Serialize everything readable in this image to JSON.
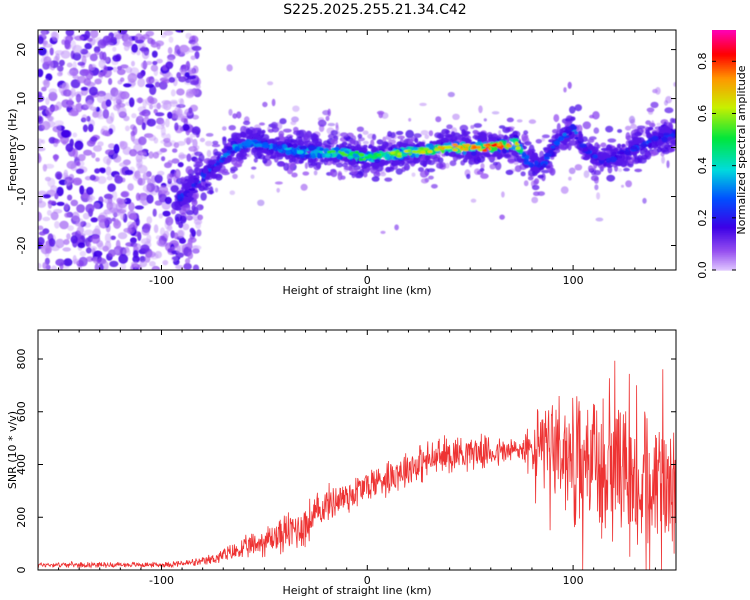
{
  "title": "S225.2025.255.21.34.C42",
  "chart_data": [
    {
      "type": "heatmap",
      "xlabel": "Height of straight line (km)",
      "ylabel": "Frequency (Hz)",
      "xlim": [
        -160,
        150
      ],
      "ylim": [
        -25,
        24
      ],
      "xticks": [
        -100,
        0,
        100
      ],
      "yticks": [
        -20,
        -10,
        0,
        10,
        20
      ],
      "colorbar": {
        "label": "Normalized spectral amplitude",
        "range": [
          0,
          0.92
        ],
        "ticks": [
          "0.0",
          "0.2",
          "0.4",
          "0.6",
          "0.8"
        ],
        "tick_values": [
          0.0,
          0.2,
          0.4,
          0.6,
          0.8
        ]
      },
      "ridge": {
        "x": [
          -90,
          -80,
          -65,
          -55,
          -45,
          -30,
          -15,
          0,
          20,
          40,
          60,
          72,
          78,
          85,
          92,
          100,
          105,
          115,
          130,
          150
        ],
        "freq": [
          -10,
          -6,
          0,
          1,
          0,
          -1,
          -1,
          -2,
          -1,
          0,
          0,
          1,
          -3,
          -4,
          1,
          4,
          0,
          -3,
          0,
          3
        ],
        "peak_amplitude": [
          0.3,
          0.35,
          0.4,
          0.45,
          0.4,
          0.55,
          0.65,
          0.6,
          0.7,
          0.8,
          0.9,
          0.85,
          0.35,
          0.3,
          0.35,
          0.4,
          0.3,
          0.25,
          0.3,
          0.3
        ]
      },
      "noise_region_x": [
        -160,
        -88
      ]
    },
    {
      "type": "line",
      "xlabel": "Height of straight line (km)",
      "ylabel": "SNR (10 * v/v)",
      "xlim": [
        -160,
        150
      ],
      "ylim": [
        0,
        910
      ],
      "xticks": [
        -100,
        0,
        100
      ],
      "yticks": [
        0,
        200,
        400,
        600,
        800
      ],
      "color": "#ee3333",
      "envelope": {
        "x": [
          -160,
          -100,
          -80,
          -60,
          -40,
          -30,
          -20,
          -10,
          0,
          20,
          40,
          50,
          60,
          70,
          75,
          80,
          85,
          90,
          100,
          110,
          120,
          130,
          140,
          150
        ],
        "mean": [
          20,
          20,
          30,
          80,
          140,
          170,
          250,
          280,
          320,
          390,
          440,
          450,
          445,
          450,
          460,
          450,
          470,
          480,
          420,
          400,
          380,
          350,
          330,
          320
        ],
        "spread": [
          12,
          12,
          20,
          50,
          90,
          110,
          80,
          90,
          80,
          90,
          90,
          80,
          70,
          70,
          70,
          120,
          220,
          250,
          280,
          300,
          280,
          260,
          260,
          250
        ]
      }
    }
  ],
  "tick_labels": {
    "x": [
      "-100",
      "0",
      "100"
    ],
    "y_top": [
      "-20",
      "-10",
      "0",
      "10",
      "20"
    ],
    "y_bottom": [
      "0",
      "200",
      "400",
      "600",
      "800"
    ]
  }
}
